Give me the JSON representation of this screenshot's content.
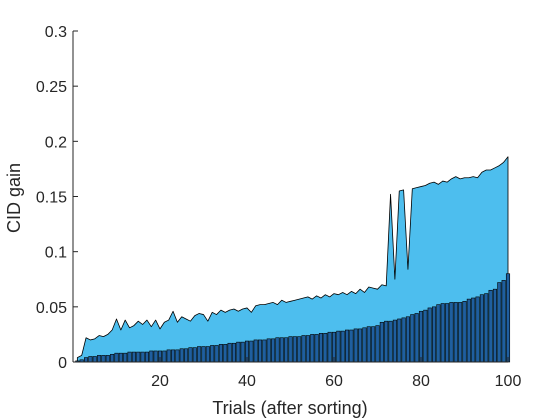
{
  "chart_data": {
    "type": "area",
    "xlabel": "Trials (after sorting)",
    "ylabel": "CID gain",
    "xlim": [
      0,
      100
    ],
    "ylim": [
      0,
      0.3
    ],
    "xticks": [
      20,
      40,
      60,
      80,
      100
    ],
    "xtick_labels": [
      "20",
      "40",
      "60",
      "80",
      "100"
    ],
    "yticks": [
      0,
      0.05,
      0.1,
      0.15,
      0.2,
      0.25,
      0.3
    ],
    "ytick_labels": [
      "0",
      "0.05",
      "0.1",
      "0.15",
      "0.2",
      "0.25",
      "0.3"
    ],
    "grid": false,
    "colors": {
      "area": "#4dbeee",
      "bars": "#1f5f9f",
      "axis": "#262626",
      "outline": "#000000"
    },
    "series": [
      {
        "kind": "area",
        "x": [
          1,
          2,
          3,
          4,
          5,
          6,
          7,
          8,
          9,
          10,
          11,
          12,
          13,
          14,
          15,
          16,
          17,
          18,
          19,
          20,
          21,
          22,
          23,
          24,
          25,
          26,
          27,
          28,
          29,
          30,
          31,
          32,
          33,
          34,
          35,
          36,
          37,
          38,
          39,
          40,
          41,
          42,
          43,
          44,
          45,
          46,
          47,
          48,
          49,
          50,
          51,
          52,
          53,
          54,
          55,
          56,
          57,
          58,
          59,
          60,
          61,
          62,
          63,
          64,
          65,
          66,
          67,
          68,
          69,
          70,
          71,
          72,
          73,
          74,
          75,
          76,
          77,
          78,
          79,
          80,
          81,
          82,
          83,
          84,
          85,
          86,
          87,
          88,
          89,
          90,
          91,
          92,
          93,
          94,
          95,
          96,
          97,
          98,
          99,
          100
        ],
        "values": [
          0.004,
          0.006,
          0.022,
          0.02,
          0.021,
          0.024,
          0.023,
          0.025,
          0.029,
          0.039,
          0.029,
          0.038,
          0.031,
          0.033,
          0.037,
          0.034,
          0.038,
          0.032,
          0.038,
          0.03,
          0.036,
          0.038,
          0.046,
          0.036,
          0.041,
          0.039,
          0.037,
          0.042,
          0.044,
          0.043,
          0.037,
          0.045,
          0.043,
          0.047,
          0.045,
          0.047,
          0.048,
          0.046,
          0.048,
          0.049,
          0.045,
          0.051,
          0.052,
          0.052,
          0.053,
          0.054,
          0.052,
          0.056,
          0.054,
          0.055,
          0.056,
          0.057,
          0.058,
          0.059,
          0.057,
          0.06,
          0.058,
          0.061,
          0.059,
          0.062,
          0.061,
          0.063,
          0.061,
          0.064,
          0.062,
          0.066,
          0.063,
          0.068,
          0.067,
          0.066,
          0.07,
          0.069,
          0.152,
          0.075,
          0.155,
          0.156,
          0.084,
          0.157,
          0.158,
          0.159,
          0.16,
          0.162,
          0.163,
          0.161,
          0.164,
          0.163,
          0.166,
          0.168,
          0.166,
          0.167,
          0.167,
          0.168,
          0.167,
          0.172,
          0.174,
          0.174,
          0.176,
          0.178,
          0.181,
          0.186
        ]
      },
      {
        "kind": "bar",
        "x": [
          1,
          2,
          3,
          4,
          5,
          6,
          7,
          8,
          9,
          10,
          11,
          12,
          13,
          14,
          15,
          16,
          17,
          18,
          19,
          20,
          21,
          22,
          23,
          24,
          25,
          26,
          27,
          28,
          29,
          30,
          31,
          32,
          33,
          34,
          35,
          36,
          37,
          38,
          39,
          40,
          41,
          42,
          43,
          44,
          45,
          46,
          47,
          48,
          49,
          50,
          51,
          52,
          53,
          54,
          55,
          56,
          57,
          58,
          59,
          60,
          61,
          62,
          63,
          64,
          65,
          66,
          67,
          68,
          69,
          70,
          71,
          72,
          73,
          74,
          75,
          76,
          77,
          78,
          79,
          80,
          81,
          82,
          83,
          84,
          85,
          86,
          87,
          88,
          89,
          90,
          91,
          92,
          93,
          94,
          95,
          96,
          97,
          98,
          99,
          100
        ],
        "values": [
          0.001,
          0.002,
          0.004,
          0.005,
          0.005,
          0.006,
          0.006,
          0.006,
          0.007,
          0.008,
          0.008,
          0.008,
          0.009,
          0.009,
          0.009,
          0.009,
          0.009,
          0.01,
          0.01,
          0.01,
          0.01,
          0.011,
          0.011,
          0.011,
          0.012,
          0.012,
          0.013,
          0.013,
          0.014,
          0.014,
          0.014,
          0.015,
          0.015,
          0.016,
          0.016,
          0.017,
          0.017,
          0.018,
          0.018,
          0.019,
          0.019,
          0.02,
          0.02,
          0.02,
          0.021,
          0.021,
          0.022,
          0.022,
          0.022,
          0.023,
          0.023,
          0.023,
          0.024,
          0.024,
          0.025,
          0.025,
          0.026,
          0.026,
          0.027,
          0.027,
          0.028,
          0.028,
          0.029,
          0.029,
          0.03,
          0.03,
          0.031,
          0.032,
          0.032,
          0.033,
          0.036,
          0.037,
          0.037,
          0.038,
          0.039,
          0.04,
          0.041,
          0.043,
          0.044,
          0.046,
          0.047,
          0.049,
          0.05,
          0.052,
          0.053,
          0.053,
          0.054,
          0.054,
          0.054,
          0.055,
          0.057,
          0.058,
          0.059,
          0.061,
          0.062,
          0.065,
          0.066,
          0.072,
          0.074,
          0.08
        ]
      }
    ]
  }
}
